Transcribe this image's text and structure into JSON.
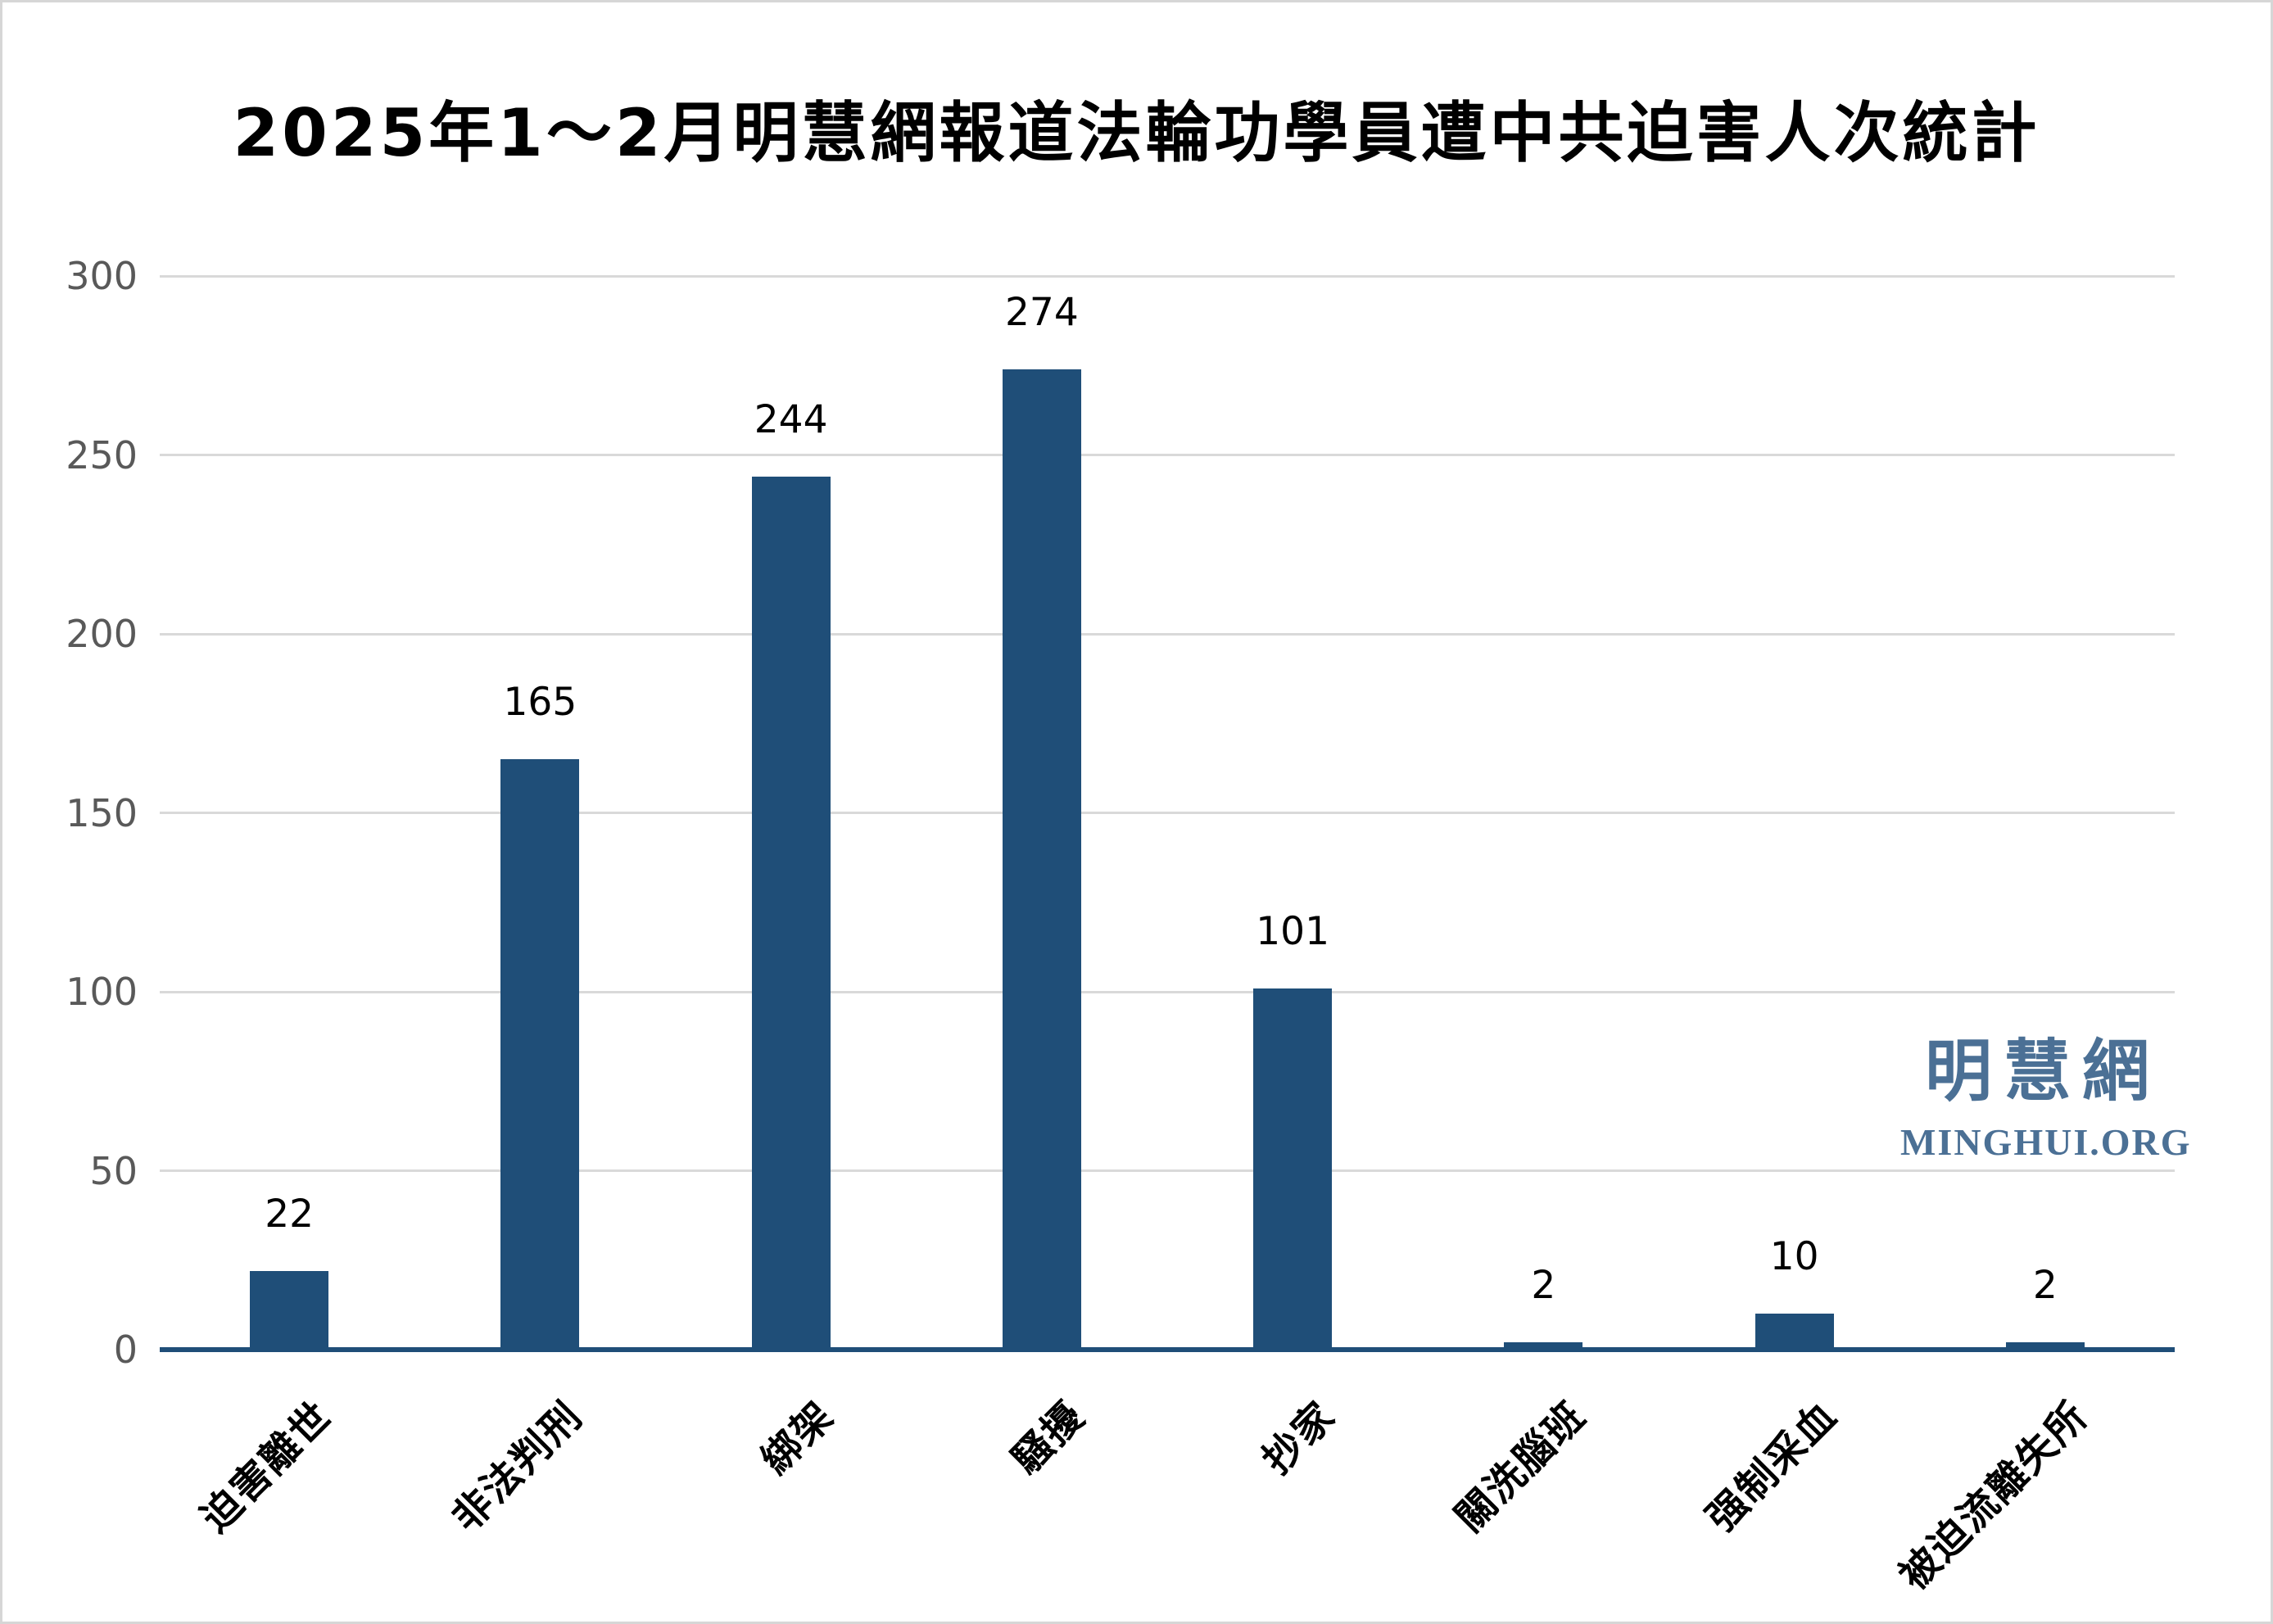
{
  "chart_data": {
    "type": "bar",
    "title": "2025年1～2月明慧網報道法輪功學員遭中共迫害人次統計",
    "categories": [
      "迫害離世",
      "非法判刑",
      "綁架",
      "騷擾",
      "抄家",
      "關洗腦班",
      "强制采血",
      "被迫流離失所"
    ],
    "values": [
      22,
      165,
      244,
      274,
      101,
      2,
      10,
      2
    ],
    "yticks": [
      0,
      50,
      100,
      150,
      200,
      250,
      300
    ],
    "ylim": [
      0,
      300
    ],
    "xlabel": "",
    "ylabel": "",
    "grid": true,
    "legend": "none",
    "bar_color": "#1f4e78",
    "grid_color": "#d9d9d9",
    "axis_color": "#1f4e78",
    "tick_label_color": "#595959",
    "value_label_color": "#000000"
  },
  "watermark": {
    "cjk": "明慧網",
    "latin": "MINGHUI.ORG",
    "color": "#4b7095"
  }
}
